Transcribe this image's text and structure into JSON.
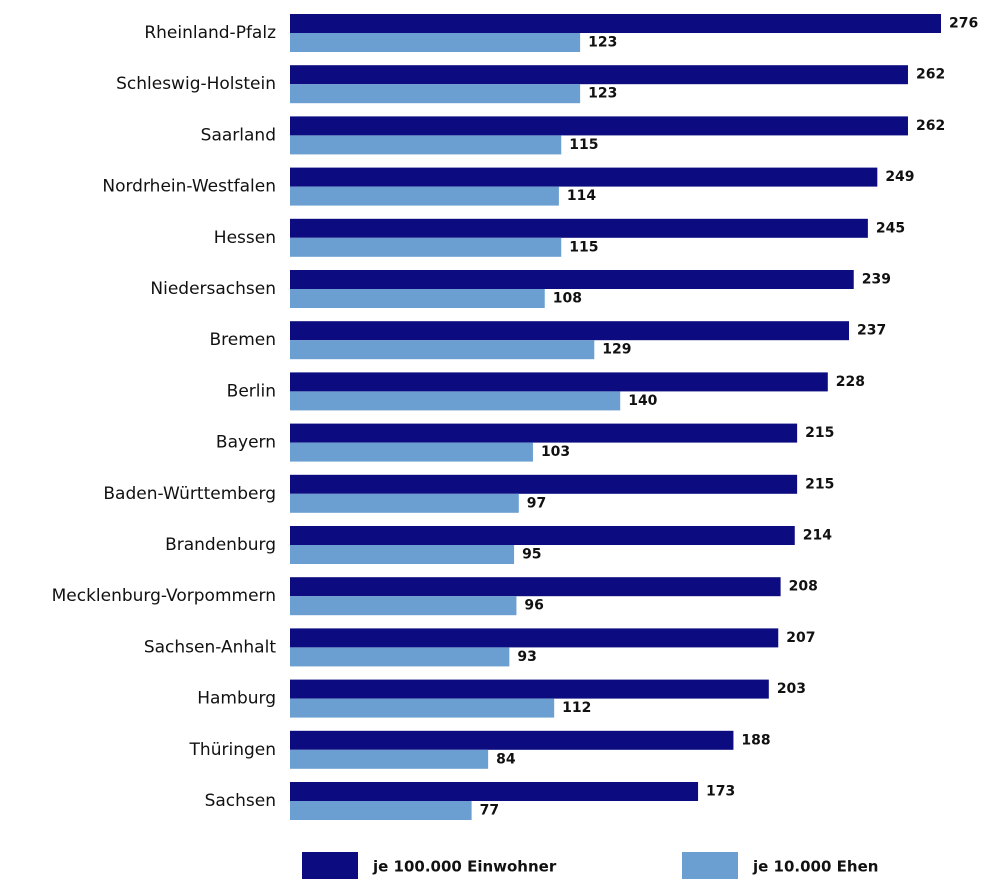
{
  "chart_data": {
    "type": "bar",
    "orientation": "horizontal",
    "categories": [
      "Rheinland-Pfalz",
      "Schleswig-Holstein",
      "Saarland",
      "Nordrhein-Westfalen",
      "Hessen",
      "Niedersachsen",
      "Bremen",
      "Berlin",
      "Bayern",
      "Baden-Württemberg",
      "Brandenburg",
      "Mecklenburg-Vorpommern",
      "Sachsen-Anhalt",
      "Hamburg",
      "Thüringen",
      "Sachsen"
    ],
    "series": [
      {
        "name": "je 100.000 Einwohner",
        "color": "#0c0c80",
        "values": [
          276,
          262,
          262,
          249,
          245,
          239,
          237,
          228,
          215,
          215,
          214,
          208,
          207,
          203,
          188,
          173
        ]
      },
      {
        "name": "je 10.000 Ehen",
        "color": "#6b9fd1",
        "values": [
          123,
          123,
          115,
          114,
          115,
          108,
          129,
          140,
          103,
          97,
          95,
          96,
          93,
          112,
          84,
          77
        ]
      }
    ],
    "legend": "bottom"
  }
}
